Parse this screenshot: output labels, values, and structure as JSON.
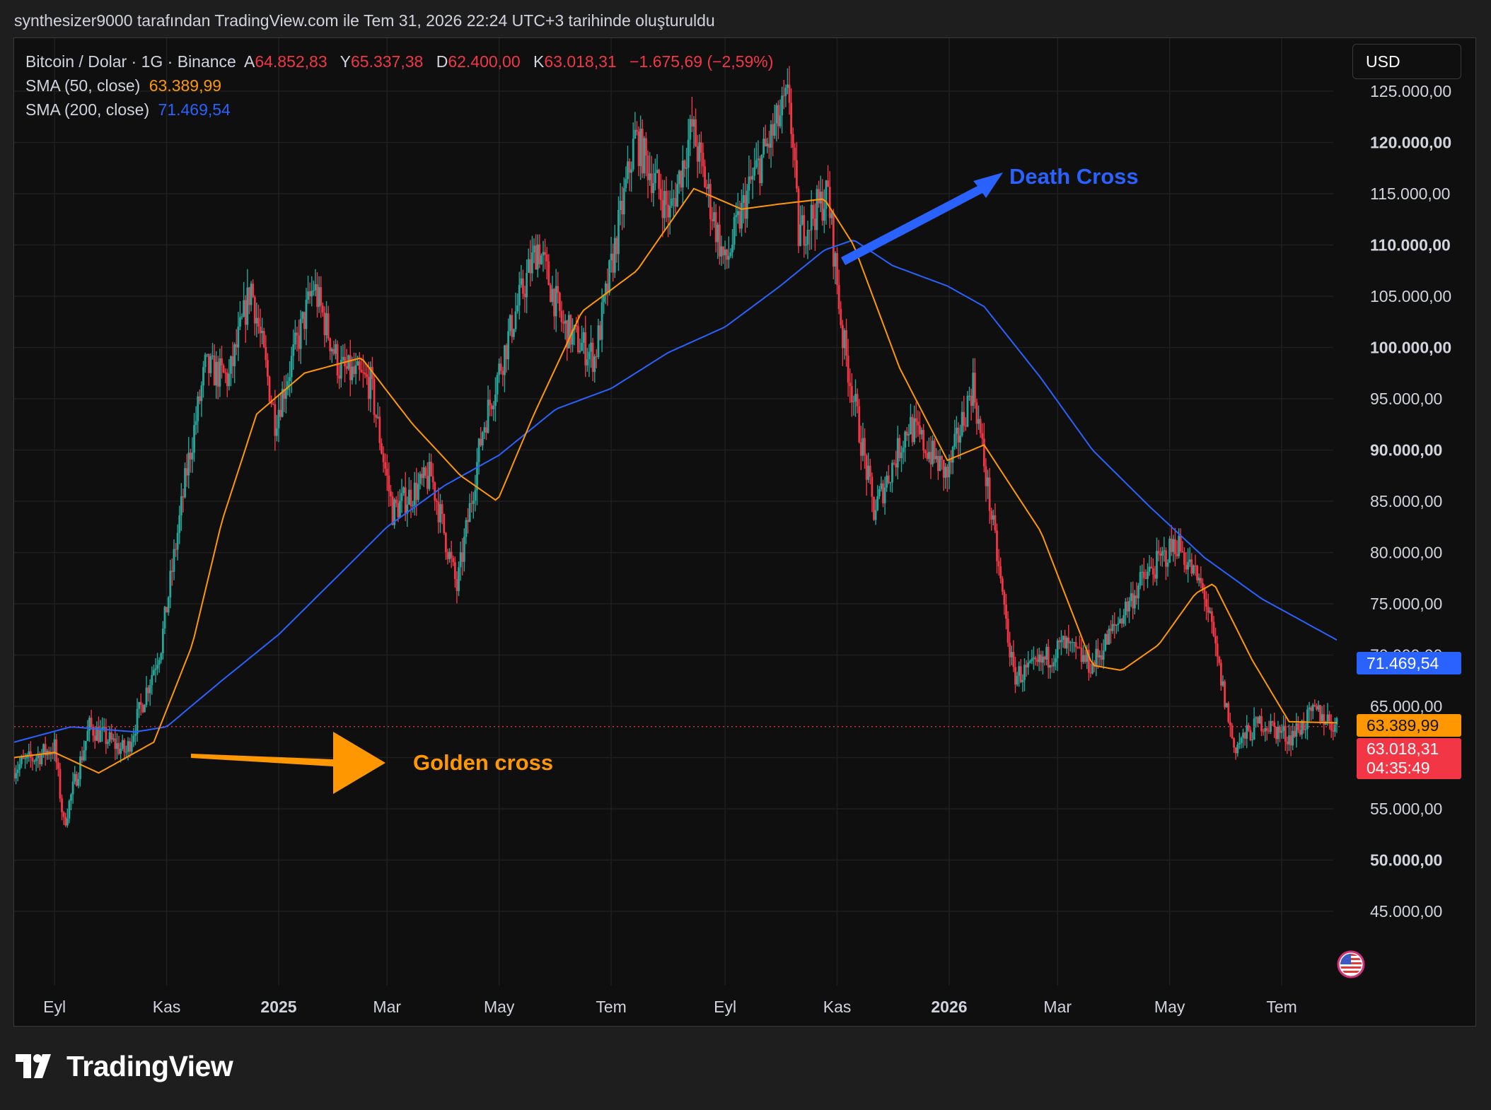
{
  "caption": "synthesizer9000 tarafından TradingView.com ile Tem 31, 2026 22:24 UTC+3 tarihinde oluşturuldu",
  "legend": {
    "symbol": "Bitcoin / Dolar · 1G · Binance",
    "open_label": "A",
    "open_value": "64.852,83",
    "high_label": "Y",
    "high_value": "65.337,38",
    "low_label": "D",
    "low_value": "62.400,00",
    "close_label": "K",
    "close_value": "63.018,31",
    "change": "−1.675,69 (−2,59%)",
    "sma50_label": "SMA (50, close)",
    "sma50_value": "63.389,99",
    "sma200_label": "SMA (200, close)",
    "sma200_value": "71.469,54"
  },
  "currency_button": "USD",
  "price_tags": {
    "sma200": "71.469,54",
    "sma50": "63.389,99",
    "last": "63.018,31",
    "countdown": "04:35:49"
  },
  "colors": {
    "background": "#0f0f0f",
    "up": "#26a69a",
    "down": "#f23645",
    "sma50": "#ff9800",
    "sma200": "#2962ff",
    "grid": "#1f1f1f",
    "axis_text": "#d1d4dc"
  },
  "annotations": {
    "death_cross": "Death Cross",
    "golden_cross": "Golden cross"
  },
  "footer_brand": "TradingView",
  "chart_data": {
    "type": "candlestick",
    "y_axis": {
      "ticks": [
        45000,
        50000,
        55000,
        60000,
        65000,
        70000,
        75000,
        80000,
        85000,
        90000,
        95000,
        100000,
        105000,
        110000,
        115000,
        120000,
        125000
      ],
      "tick_labels": [
        "45.000,00",
        "50.000,00",
        "55.000,00",
        "60.000,00",
        "65.000,00",
        "70.000,00",
        "75.000,00",
        "80.000,00",
        "85.000,00",
        "90.000,00",
        "95.000,00",
        "100.000,00",
        "105.000,00",
        "110.000,00",
        "115.000,00",
        "120.000,00",
        "125.000,00"
      ],
      "bold_ticks": [
        50000,
        90000,
        100000,
        110000,
        120000
      ]
    },
    "x_axis": {
      "tick_labels": [
        "Eyl",
        "Kas",
        "2025",
        "Mar",
        "May",
        "Tem",
        "Eyl",
        "Kas",
        "2026",
        "Mar",
        "May",
        "Tem"
      ],
      "tick_dates": [
        "2024-09-01",
        "2024-11-01",
        "2025-01-01",
        "2025-03-01",
        "2025-05-01",
        "2025-07-01",
        "2025-09-01",
        "2025-11-01",
        "2026-01-01",
        "2026-03-01",
        "2026-05-01",
        "2026-07-01"
      ],
      "bold_labels": [
        "2025",
        "2026"
      ],
      "range": [
        "2024-08-10",
        "2026-07-31"
      ]
    },
    "price_path": [
      [
        "2024-08-10",
        59000
      ],
      [
        "2024-09-01",
        61000
      ],
      [
        "2024-09-06",
        53500
      ],
      [
        "2024-09-20",
        63000
      ],
      [
        "2024-10-10",
        60500
      ],
      [
        "2024-10-29",
        71000
      ],
      [
        "2024-11-12",
        88000
      ],
      [
        "2024-11-22",
        98000
      ],
      [
        "2024-12-05",
        97000
      ],
      [
        "2024-12-17",
        106000
      ],
      [
        "2024-12-30",
        93000
      ],
      [
        "2025-01-20",
        106000
      ],
      [
        "2025-02-03",
        98000
      ],
      [
        "2025-02-20",
        96500
      ],
      [
        "2025-03-04",
        84000
      ],
      [
        "2025-03-25",
        87500
      ],
      [
        "2025-04-08",
        76500
      ],
      [
        "2025-04-22",
        92000
      ],
      [
        "2025-05-10",
        103500
      ],
      [
        "2025-05-22",
        110000
      ],
      [
        "2025-06-05",
        102000
      ],
      [
        "2025-06-22",
        99000
      ],
      [
        "2025-07-14",
        120500
      ],
      [
        "2025-08-02",
        113000
      ],
      [
        "2025-08-14",
        121500
      ],
      [
        "2025-09-01",
        108000
      ],
      [
        "2025-09-15",
        116000
      ],
      [
        "2025-10-06",
        124500
      ],
      [
        "2025-10-11",
        111000
      ],
      [
        "2025-10-27",
        115000
      ],
      [
        "2025-11-04",
        101000
      ],
      [
        "2025-11-21",
        84000
      ],
      [
        "2025-12-10",
        92500
      ],
      [
        "2025-12-31",
        87500
      ],
      [
        "2026-01-14",
        96500
      ],
      [
        "2026-02-05",
        68000
      ],
      [
        "2026-02-15",
        68500
      ],
      [
        "2026-03-04",
        71000
      ],
      [
        "2026-03-20",
        69000
      ],
      [
        "2026-04-15",
        77000
      ],
      [
        "2026-05-05",
        81000
      ],
      [
        "2026-05-20",
        76000
      ],
      [
        "2026-06-05",
        61000
      ],
      [
        "2026-06-20",
        63500
      ],
      [
        "2026-07-05",
        62000
      ],
      [
        "2026-07-20",
        64500
      ],
      [
        "2026-07-31",
        63018
      ]
    ],
    "sma50": [
      [
        "2024-08-10",
        60000
      ],
      [
        "2024-09-01",
        60500
      ],
      [
        "2024-09-25",
        58500
      ],
      [
        "2024-10-25",
        61500
      ],
      [
        "2024-11-15",
        71000
      ],
      [
        "2024-12-01",
        83000
      ],
      [
        "2024-12-20",
        93500
      ],
      [
        "2025-01-15",
        97500
      ],
      [
        "2025-02-15",
        99000
      ],
      [
        "2025-03-15",
        92500
      ],
      [
        "2025-04-10",
        87500
      ],
      [
        "2025-04-30",
        85000
      ],
      [
        "2025-05-20",
        93500
      ],
      [
        "2025-06-15",
        103500
      ],
      [
        "2025-07-15",
        107500
      ],
      [
        "2025-08-15",
        115500
      ],
      [
        "2025-09-10",
        113500
      ],
      [
        "2025-10-01",
        114000
      ],
      [
        "2025-10-25",
        114500
      ],
      [
        "2025-11-10",
        110000
      ],
      [
        "2025-12-05",
        98000
      ],
      [
        "2025-12-31",
        89000
      ],
      [
        "2026-01-20",
        90500
      ],
      [
        "2026-02-20",
        82000
      ],
      [
        "2026-03-20",
        69000
      ],
      [
        "2026-04-05",
        68500
      ],
      [
        "2026-04-25",
        71000
      ],
      [
        "2026-05-15",
        76000
      ],
      [
        "2026-05-25",
        77000
      ],
      [
        "2026-06-15",
        69500
      ],
      [
        "2026-07-05",
        63500
      ],
      [
        "2026-07-31",
        63390
      ]
    ],
    "sma200": [
      [
        "2024-08-10",
        61500
      ],
      [
        "2024-09-10",
        63000
      ],
      [
        "2024-10-15",
        62500
      ],
      [
        "2024-11-01",
        63000
      ],
      [
        "2024-12-01",
        67500
      ],
      [
        "2025-01-01",
        72000
      ],
      [
        "2025-02-01",
        77500
      ],
      [
        "2025-03-01",
        82500
      ],
      [
        "2025-04-01",
        86500
      ],
      [
        "2025-05-01",
        89500
      ],
      [
        "2025-06-01",
        94000
      ],
      [
        "2025-07-01",
        96000
      ],
      [
        "2025-08-01",
        99500
      ],
      [
        "2025-09-01",
        102000
      ],
      [
        "2025-10-01",
        106000
      ],
      [
        "2025-10-25",
        109500
      ],
      [
        "2025-11-10",
        110500
      ],
      [
        "2025-12-01",
        108000
      ],
      [
        "2025-12-31",
        106000
      ],
      [
        "2026-01-20",
        104000
      ],
      [
        "2026-02-20",
        97000
      ],
      [
        "2026-03-20",
        90000
      ],
      [
        "2026-04-20",
        84500
      ],
      [
        "2026-05-20",
        79500
      ],
      [
        "2026-06-20",
        75500
      ],
      [
        "2026-07-31",
        71470
      ]
    ],
    "reference_lines": [
      63018.31
    ]
  }
}
